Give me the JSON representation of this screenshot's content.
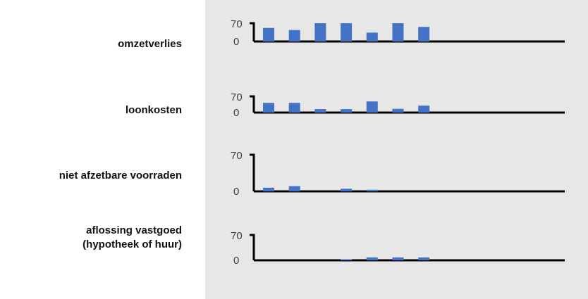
{
  "chart_data": {
    "type": "bar",
    "colors": {
      "bar": "#4472c4",
      "axis": "#000000",
      "background": "#e7e7e7"
    },
    "ylim": [
      0,
      70
    ],
    "y_ticks": [
      "70",
      "0"
    ],
    "grid": false,
    "categories_count": 7,
    "rows": [
      {
        "label_lines": [
          "omzetverlies"
        ],
        "values": [
          52,
          44,
          70,
          70,
          34,
          70,
          56
        ]
      },
      {
        "label_lines": [
          "loonkosten"
        ],
        "values": [
          42,
          42,
          15,
          15,
          48,
          16,
          30
        ]
      },
      {
        "label_lines": [
          "niet afzetbare voorraden"
        ],
        "values": [
          7,
          10,
          0,
          5,
          3,
          0,
          0
        ]
      },
      {
        "label_lines": [
          "aflossing vastgoed",
          "(hypotheek of huur)"
        ],
        "values": [
          0,
          0,
          0,
          3,
          8,
          8,
          8
        ]
      }
    ]
  }
}
